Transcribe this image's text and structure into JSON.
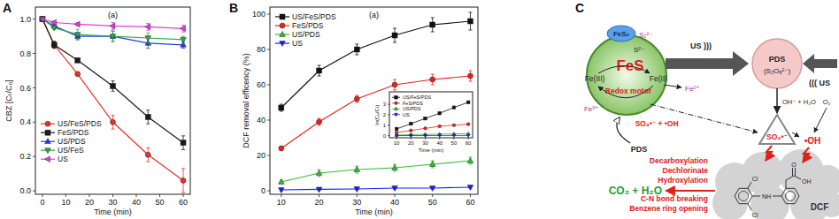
{
  "panel_labels": [
    "A",
    "B",
    "C"
  ],
  "chart_data": [
    {
      "type": "line",
      "annotations": [
        "(a)"
      ],
      "xlabel": "Time (min)",
      "ylabel": "CBZ [Cₜ/C₀]",
      "x": [
        0,
        5,
        15,
        30,
        45,
        60
      ],
      "xlim": [
        -3,
        63
      ],
      "xticks": [
        0,
        10,
        20,
        30,
        40,
        50,
        60
      ],
      "ylim": [
        -0.02,
        1.07
      ],
      "yticks": [
        {
          "value": 0,
          "label": "0.0"
        },
        0.2,
        0.4,
        0.6,
        0.8,
        {
          "value": 1,
          "label": "1.0"
        }
      ],
      "grid": false,
      "legend": "center left",
      "series": [
        {
          "name": "US/FeS/PDS",
          "color": "#e8302a",
          "marker": "circle",
          "line_style": "solid",
          "values": [
            1.0,
            0.85,
            0.68,
            0.4,
            0.21,
            0.06
          ],
          "errors": [
            0,
            0.02,
            0.01,
            0.04,
            0.04,
            0.07
          ]
        },
        {
          "name": "FeS/PDS",
          "color": "#1a1a1a",
          "marker": "square",
          "line_style": "solid",
          "values": [
            1.0,
            0.85,
            0.76,
            0.61,
            0.43,
            0.28
          ],
          "errors": [
            0,
            0.02,
            0.01,
            0.03,
            0.04,
            0.04
          ]
        },
        {
          "name": "US/PDS",
          "color": "#1f3fe0",
          "marker": "triangle-up",
          "line_style": "solid",
          "values": [
            1.0,
            0.96,
            0.9,
            0.9,
            0.86,
            0.85
          ],
          "errors": [
            0,
            0.01,
            0.02,
            0.03,
            0.03,
            0.02
          ]
        },
        {
          "name": "US/FeS",
          "color": "#2eaa48",
          "marker": "triangle-down",
          "line_style": "solid",
          "values": [
            1.0,
            0.95,
            0.91,
            0.9,
            0.89,
            0.88
          ],
          "errors": [
            0,
            0.01,
            0.03,
            0.03,
            0.03,
            0.02
          ]
        },
        {
          "name": "US",
          "color": "#e03ce0",
          "marker": "triangle-left",
          "line_style": "solid",
          "values": [
            1.0,
            0.98,
            0.97,
            0.96,
            0.955,
            0.945
          ],
          "errors": [
            0,
            0.01,
            0.01,
            0.02,
            0.02,
            0.02
          ]
        }
      ]
    },
    {
      "type": "line",
      "annotations": [
        "(a)"
      ],
      "xlabel": "Time (min)",
      "ylabel": "DCF removal efficency (%)",
      "x": [
        10,
        20,
        30,
        40,
        50,
        60
      ],
      "xlim": [
        7,
        62
      ],
      "xticks": [
        10,
        20,
        30,
        40,
        50,
        60
      ],
      "ylim": [
        -2,
        104
      ],
      "yticks": [
        0,
        20,
        40,
        60,
        80,
        100
      ],
      "grid": false,
      "legend": "upper left",
      "series": [
        {
          "name": "US/FeS/PDS",
          "color": "#111111",
          "marker": "square",
          "line_style": "solid",
          "values": [
            47,
            68,
            80,
            88,
            94,
            96
          ],
          "errors": [
            2,
            3,
            3,
            4,
            4,
            5
          ]
        },
        {
          "name": "FeS/PDS",
          "color": "#e8231e",
          "marker": "circle",
          "line_style": "solid",
          "values": [
            24,
            39,
            52,
            60,
            63,
            65
          ],
          "errors": [
            1,
            2,
            2,
            3,
            3,
            3
          ]
        },
        {
          "name": "US/PDS",
          "color": "#33bb33",
          "marker": "triangle-up",
          "line_style": "solid",
          "values": [
            5,
            10,
            12,
            13,
            15,
            17
          ],
          "errors": [
            1,
            2,
            2,
            2,
            2,
            2
          ]
        },
        {
          "name": "US",
          "color": "#1a1aff",
          "marker": "triangle-down",
          "line_style": "solid",
          "values": [
            0.5,
            0.8,
            1,
            1.5,
            1.5,
            2
          ],
          "errors": [
            0.5,
            0.5,
            0.5,
            0.5,
            0.5,
            0.5
          ]
        }
      ]
    },
    {
      "type": "line",
      "xlabel": "Time (min)",
      "ylabel": "ln(C₀/Cₜ)",
      "x": [
        10,
        20,
        30,
        40,
        50,
        60
      ],
      "xlim": [
        5,
        63
      ],
      "xticks": [
        10,
        20,
        30,
        40,
        50,
        60
      ],
      "ylim": [
        -0.2,
        4.2
      ],
      "yticks": [
        0,
        1,
        2,
        3
      ],
      "grid": false,
      "legend": "upper left",
      "series": [
        {
          "name": "US/FeS/PDS",
          "color": "#111111",
          "marker": "square",
          "line_style": "solid",
          "values": [
            0.65,
            1.15,
            1.65,
            2.15,
            2.7,
            3.2
          ]
        },
        {
          "name": "FeS/PDS",
          "color": "#e8231e",
          "marker": "circle",
          "line_style": "solid",
          "values": [
            0.3,
            0.5,
            0.7,
            0.9,
            1.0,
            1.1
          ]
        },
        {
          "name": "US/PDS",
          "color": "#33bb33",
          "marker": "triangle-up",
          "line_style": "solid",
          "values": [
            0.05,
            0.1,
            0.13,
            0.15,
            0.17,
            0.19
          ]
        },
        {
          "name": "US",
          "color": "#1a1aff",
          "marker": "triangle-down",
          "line_style": "solid",
          "values": [
            0.01,
            0.01,
            0.01,
            0.02,
            0.02,
            0.02
          ]
        }
      ]
    }
  ],
  "diagram": {
    "fes": "FeS",
    "redox": "Redox motor",
    "fe3": "Fe(III)",
    "fe2": "Fe(II)",
    "s2": "S²⁻",
    "fes2": "FeS₂",
    "s22": "S₂²⁻",
    "fe2ion": "Fe²⁺",
    "fe3ion": "Fe³⁺",
    "us_left": "US )))",
    "pds_circle": "PDS",
    "pds_formula": "(S₂O₈²⁻)",
    "us_right": "((( US",
    "water": "OH⁻ + H₂O",
    "o2": "O₂",
    "sulfate": "SO₄•⁻",
    "hydroxyl": "•OH",
    "radicals": "SO₄•⁻ + •OH",
    "pds_in": "PDS",
    "steps": [
      "Decarboxylation",
      "Dechlorinate",
      "Hydroxylation",
      "C-N bond breaking",
      "Benzene ring opening"
    ],
    "products": "CO₂ + H₂O",
    "pollutant": "DCF",
    "molecule": {
      "cl": [
        "Cl",
        "Cl"
      ],
      "nh": "NH",
      "oh": "OH",
      "o": "O"
    }
  }
}
